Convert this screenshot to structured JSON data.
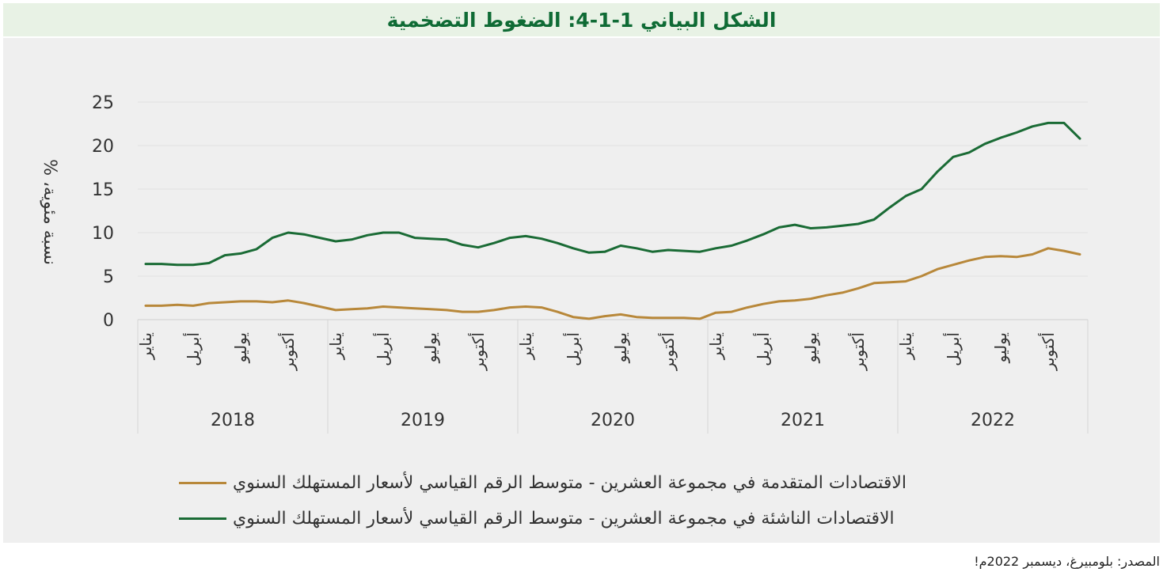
{
  "title": "الشكل البياني 1-1-4: الضغوط التضخمية",
  "source": "المصدر: بلومبيرغ، ديسمبر 2022م!",
  "colors": {
    "advanced": "#b8883a",
    "emerging": "#1a6b35",
    "title_bg": "#e8f2e5",
    "panel_bg": "#efefef"
  },
  "chart_data": {
    "type": "line",
    "ylabel": "نسبة مئوية، %",
    "ylim": [
      0,
      25
    ],
    "yticks": [
      "0",
      "5",
      "10",
      "15",
      "20",
      "25"
    ],
    "month_labels": [
      "يناير",
      "أبريل",
      "يوليو",
      "أكتوبر"
    ],
    "years": [
      "2018",
      "2019",
      "2020",
      "2021",
      "2022"
    ],
    "grid": true,
    "legend_position": "bottom",
    "series": [
      {
        "name": "الاقتصادات المتقدمة في مجموعة العشرين - متوسط الرقم القياسي لأسعار المستهلك السنوي",
        "color": "#b8883a",
        "values": [
          1.6,
          1.6,
          1.7,
          1.6,
          1.9,
          2.0,
          2.1,
          2.1,
          2.0,
          2.2,
          1.9,
          1.5,
          1.1,
          1.2,
          1.3,
          1.5,
          1.4,
          1.3,
          1.2,
          1.1,
          0.9,
          0.9,
          1.1,
          1.4,
          1.5,
          1.4,
          0.9,
          0.3,
          0.1,
          0.4,
          0.6,
          0.3,
          0.2,
          0.2,
          0.2,
          0.1,
          0.8,
          0.9,
          1.4,
          1.8,
          2.1,
          2.2,
          2.4,
          2.8,
          3.1,
          3.6,
          4.2,
          4.3,
          4.4,
          5.0,
          5.8,
          6.3,
          6.8,
          7.2,
          7.3,
          7.2,
          7.5,
          8.2,
          7.9,
          7.5
        ]
      },
      {
        "name": "الاقتصادات الناشئة في مجموعة العشرين - متوسط الرقم القياسي لأسعار المستهلك السنوي",
        "color": "#1a6b35",
        "values": [
          6.4,
          6.4,
          6.3,
          6.3,
          6.5,
          7.4,
          7.6,
          8.1,
          9.4,
          10.0,
          9.8,
          9.4,
          9.0,
          9.2,
          9.7,
          10.0,
          10.0,
          9.4,
          9.3,
          9.2,
          8.6,
          8.3,
          8.8,
          9.4,
          9.6,
          9.3,
          8.8,
          8.2,
          7.7,
          7.8,
          8.5,
          8.2,
          7.8,
          8.0,
          7.9,
          7.8,
          8.2,
          8.5,
          9.1,
          9.8,
          10.6,
          10.9,
          10.5,
          10.6,
          10.8,
          11.0,
          11.5,
          12.9,
          14.2,
          15.0,
          17.0,
          18.7,
          19.2,
          20.2,
          20.9,
          21.5,
          22.2,
          22.6,
          22.6,
          20.8
        ]
      }
    ]
  }
}
